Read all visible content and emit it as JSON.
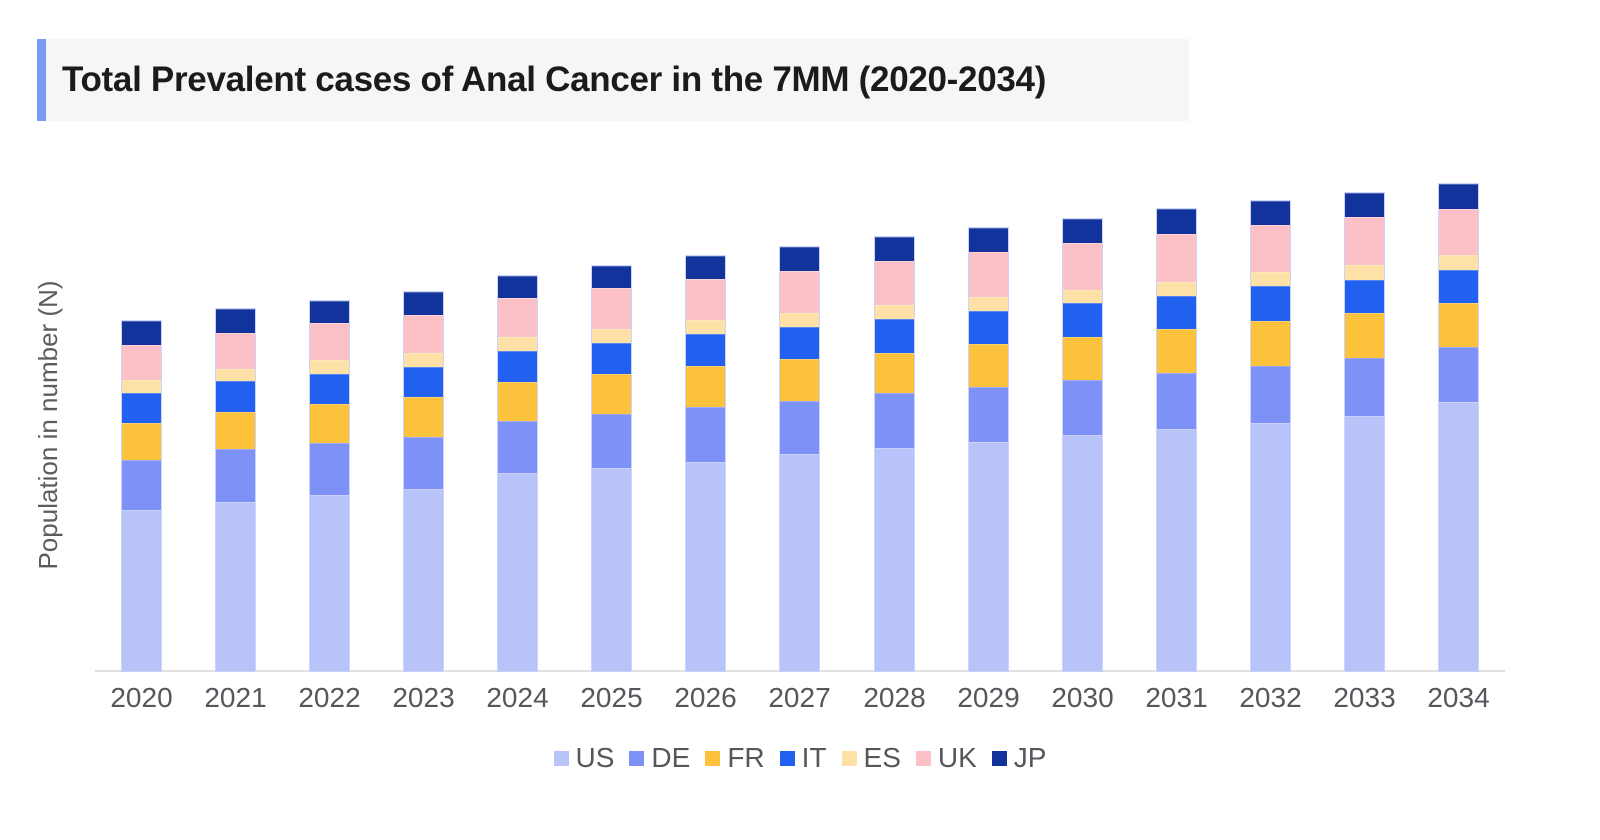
{
  "header": {
    "title": "Total Prevalent cases of Anal Cancer in the 7MM (2020-2034)",
    "accent_color": "#7C9BF0",
    "strip_background": "#F6F6F7"
  },
  "axes": {
    "y_label": "Population in number (N)",
    "y_numeric_tick_labels_visible": false,
    "axis_line_color": "#E2E2E4"
  },
  "chart_data": {
    "type": "bar",
    "stacked": true,
    "title": "Total Prevalent cases of Anal Cancer in the 7MM (2020-2034)",
    "xlabel": "",
    "ylabel": "Population in number (N)",
    "legend_position": "bottom",
    "grid": false,
    "axis_value_labels": "none",
    "units_note": "No numeric y-axis ticks are shown in the source; segment values below are relative heights measured in screen pixels",
    "categories": [
      "2020",
      "2021",
      "2022",
      "2023",
      "2024",
      "2025",
      "2026",
      "2027",
      "2028",
      "2029",
      "2030",
      "2031",
      "2032",
      "2033",
      "2034"
    ],
    "stack_order_bottom_to_top": [
      "US",
      "DE",
      "FR",
      "IT",
      "ES",
      "UK",
      "JP"
    ],
    "series": [
      {
        "name": "US",
        "color": "#B8C3FA",
        "values": [
          161,
          169,
          176,
          182,
          198,
          203,
          209,
          217,
          223,
          229,
          236,
          242,
          248,
          255,
          269
        ]
      },
      {
        "name": "DE",
        "color": "#7E91F7",
        "values": [
          50,
          53,
          52,
          52,
          52,
          54,
          55,
          53,
          55,
          55,
          55,
          56,
          57,
          58,
          55
        ]
      },
      {
        "name": "FR",
        "color": "#FDC23C",
        "values": [
          37,
          37,
          39,
          40,
          39,
          40,
          41,
          42,
          40,
          43,
          43,
          44,
          45,
          45,
          44
        ]
      },
      {
        "name": "IT",
        "color": "#2260F0",
        "values": [
          30,
          31,
          30,
          30,
          31,
          31,
          32,
          32,
          34,
          33,
          34,
          33,
          35,
          33,
          33
        ]
      },
      {
        "name": "ES",
        "color": "#FDE1A6",
        "values": [
          13,
          12,
          14,
          14,
          14,
          14,
          14,
          14,
          14,
          14,
          13,
          14,
          14,
          15,
          15
        ]
      },
      {
        "name": "UK",
        "color": "#FBC1C6",
        "values": [
          35,
          36,
          37,
          38,
          39,
          41,
          41,
          42,
          44,
          45,
          47,
          48,
          47,
          48,
          46
        ]
      },
      {
        "name": "JP",
        "color": "#11339B",
        "values": [
          24,
          24,
          22,
          23,
          22,
          22,
          23,
          24,
          24,
          24,
          24,
          25,
          24,
          24,
          25
        ]
      }
    ],
    "stack_totals_relative": [
      350,
      362,
      370,
      379,
      395,
      405,
      415,
      424,
      434,
      443,
      452,
      462,
      470,
      478,
      487
    ]
  }
}
